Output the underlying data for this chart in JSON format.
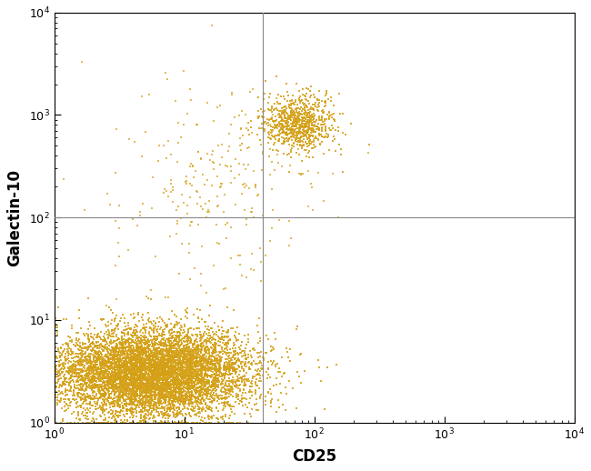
{
  "title": "",
  "xlabel": "CD25",
  "ylabel": "Galectin-10",
  "xlim": [
    1,
    10000
  ],
  "ylim": [
    1,
    10000
  ],
  "dot_color": "#D4A017",
  "dot_size": 3.5,
  "dot_alpha": 0.85,
  "gate_x": 40,
  "gate_y": 100,
  "background_color": "#ffffff",
  "cluster1": {
    "x_log_mean": 0.75,
    "x_log_std": 0.38,
    "y_log_mean": 0.48,
    "y_log_std": 0.22,
    "n": 8000
  },
  "cluster2": {
    "x_log_mean": 1.88,
    "x_log_std": 0.14,
    "y_log_mean": 2.92,
    "y_log_std": 0.14,
    "n": 800
  },
  "scatter_trail": {
    "n": 200,
    "x_log_mean": 1.35,
    "x_log_std": 0.35,
    "y_log_mean": 2.4,
    "y_log_std": 0.45
  },
  "scatter_sparse": {
    "n": 80,
    "x_log_mean": 1.0,
    "x_log_std": 0.45,
    "y_log_mean": 2.1,
    "y_log_std": 0.55
  }
}
